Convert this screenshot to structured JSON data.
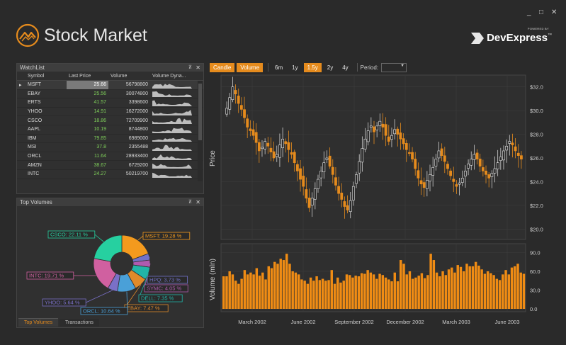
{
  "window": {
    "minimize": "_",
    "maximize": "□",
    "close": "✕"
  },
  "app": {
    "title": "Stock Market"
  },
  "brand": {
    "name": "DevExpress",
    "tm": "™",
    "powered": "POWERED BY"
  },
  "watchlist": {
    "title": "WatchList",
    "pin": "⊼",
    "close": "✕",
    "columns": [
      "Symbol",
      "Last Price",
      "Volume",
      "Volume Dyna..."
    ],
    "rows": [
      {
        "symbol": "MSFT",
        "price": "25.66",
        "volume": "56798800"
      },
      {
        "symbol": "EBAY",
        "price": "25.56",
        "volume": "30074800"
      },
      {
        "symbol": "ERTS",
        "price": "41.57",
        "volume": "3398600"
      },
      {
        "symbol": "YHOO",
        "price": "14.91",
        "volume": "16272000"
      },
      {
        "symbol": "CSCO",
        "price": "18.86",
        "volume": "72709900"
      },
      {
        "symbol": "AAPL",
        "price": "10.19",
        "volume": "8744800"
      },
      {
        "symbol": "IBM",
        "price": "79.85",
        "volume": "6989000"
      },
      {
        "symbol": "MSI",
        "price": "37.8",
        "volume": "2355488"
      },
      {
        "symbol": "ORCL",
        "price": "11.64",
        "volume": "28933400"
      },
      {
        "symbol": "AMZN",
        "price": "38.67",
        "volume": "6729200"
      },
      {
        "symbol": "INTC",
        "price": "24.27",
        "volume": "50219700"
      }
    ]
  },
  "topvolumes": {
    "title": "Top Volumes",
    "pin": "⊼",
    "close": "✕",
    "tabs": [
      "Top Volumes",
      "Transactions"
    ]
  },
  "toolbar": {
    "candle": "Candle",
    "volume": "Volume",
    "ranges": [
      "6m",
      "1y",
      "1.5y",
      "2y",
      "4y"
    ],
    "active_range": "1.5y",
    "period_label": "Period:",
    "period_value": ""
  },
  "colors": {
    "accent": "#e58b1d",
    "green": "#7fd05a",
    "bg": "#2a2a2a"
  },
  "chart_data": [
    {
      "type": "pie",
      "title": "",
      "labels": [
        "MSFT: 19.28 %",
        "HPQ: 3.73 %",
        "SYMC: 4.05 %",
        "DELL: 7.35 %",
        "EBAY: 7.47 %",
        "ORCL: 10.64 %",
        "YHOO: 5.64 %",
        "INTC: 19.71 %",
        "CSCO: 22.11 %"
      ],
      "values": [
        19.28,
        3.73,
        4.05,
        7.35,
        7.47,
        10.64,
        5.64,
        19.71,
        22.11
      ],
      "colors": [
        "#f39a1e",
        "#7272c8",
        "#b05ab0",
        "#22b4a8",
        "#e08a2a",
        "#4aa0d8",
        "#7a70c8",
        "#d060a0",
        "#26d0a0"
      ]
    },
    {
      "type": "candlestick",
      "ylabel": "Price",
      "ylim": [
        19.6,
        32.4
      ],
      "yticks": [
        "$20.0",
        "$22.0",
        "$24.0",
        "$26.0",
        "$28.0",
        "$30.0",
        "$32.0"
      ],
      "xticks": [
        "March 2002",
        "June 2002",
        "September 2002",
        "December 2002",
        "March 2003",
        "June 2003"
      ],
      "closes": [
        30.2,
        31.1,
        32.0,
        31.4,
        30.6,
        30.1,
        29.4,
        28.6,
        28.3,
        27.9,
        27.3,
        26.6,
        26.9,
        27.4,
        27.0,
        26.5,
        26.0,
        26.3,
        27.1,
        27.6,
        27.2,
        26.7,
        26.3,
        25.6,
        24.9,
        24.2,
        23.6,
        22.6,
        21.8,
        22.6,
        23.4,
        24.2,
        24.9,
        25.6,
        26.0,
        25.3,
        24.6,
        23.7,
        23.0,
        22.5,
        21.9,
        21.6,
        22.4,
        23.6,
        24.6,
        25.7,
        26.8,
        27.6,
        28.3,
        28.7,
        28.2,
        28.7,
        29.1,
        28.6,
        27.9,
        27.4,
        27.9,
        28.4,
        28.0,
        27.6,
        27.2,
        26.7,
        26.4,
        25.9,
        25.1,
        24.3,
        23.8,
        23.5,
        24.1,
        24.6,
        25.2,
        25.9,
        26.6,
        26.2,
        25.7,
        25.1,
        24.5,
        24.0,
        23.6,
        23.9,
        24.3,
        24.9,
        25.5,
        25.9,
        26.3,
        25.9,
        25.3,
        24.9,
        24.6,
        24.3,
        24.7,
        25.1,
        25.6,
        26.1,
        26.6,
        27.0,
        27.4,
        27.1,
        26.6,
        26.2,
        25.9
      ]
    },
    {
      "type": "bar",
      "ylabel": "Volume (mln)",
      "ylim": [
        0,
        95
      ],
      "yticks": [
        "0.0",
        "30.0",
        "60.0",
        "90.0"
      ],
      "values": [
        52,
        52,
        60,
        55,
        45,
        40,
        48,
        62,
        55,
        58,
        55,
        65,
        53,
        58,
        47,
        68,
        65,
        75,
        72,
        80,
        78,
        88,
        72,
        60,
        58,
        55,
        47,
        45,
        40,
        50,
        45,
        52,
        46,
        48,
        45,
        46,
        62,
        40,
        50,
        42,
        45,
        55,
        54,
        50,
        53,
        52,
        57,
        56,
        62,
        58,
        55,
        48,
        56,
        54,
        50,
        47,
        44,
        58,
        44,
        78,
        72,
        55,
        60,
        48,
        50,
        53,
        57,
        49,
        54,
        88,
        78,
        58,
        52,
        60,
        54,
        63,
        66,
        58,
        70,
        67,
        60,
        72,
        68,
        68,
        75,
        69,
        63,
        56,
        60,
        57,
        54,
        48,
        46,
        55,
        62,
        55,
        66,
        68,
        72,
        58,
        56
      ]
    }
  ]
}
